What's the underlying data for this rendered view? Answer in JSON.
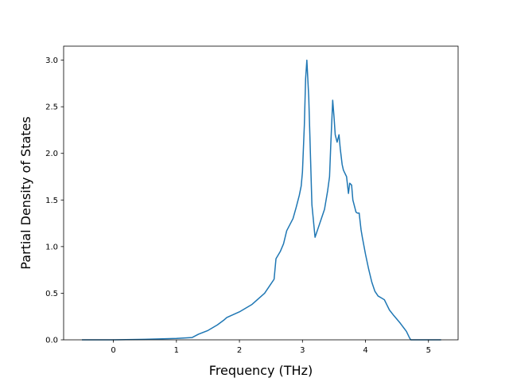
{
  "chart_data": {
    "type": "line",
    "title": "",
    "xlabel": "Frequency (THz)",
    "ylabel": "Partial Density of States",
    "xlim": [
      -0.79,
      5.47
    ],
    "ylim": [
      0.0,
      3.15
    ],
    "xticks": [
      0,
      1,
      2,
      3,
      4,
      5
    ],
    "yticks": [
      0.0,
      0.5,
      1.0,
      1.5,
      2.0,
      2.5,
      3.0
    ],
    "xtick_labels": [
      "0",
      "1",
      "2",
      "3",
      "4",
      "5"
    ],
    "ytick_labels": [
      "0.0",
      "0.5",
      "1.0",
      "1.5",
      "2.0",
      "2.5",
      "3.0"
    ],
    "grid": false,
    "line_color": "#1f77b4",
    "series": [
      {
        "x": [
          -0.5,
          0.0,
          0.5,
          1.0,
          1.25,
          1.35,
          1.5,
          1.65,
          1.75,
          1.8,
          2.0,
          2.2,
          2.4,
          2.5,
          2.55,
          2.58,
          2.65,
          2.7,
          2.75,
          2.85,
          2.9,
          2.95,
          2.98,
          3.0,
          3.03,
          3.05,
          3.07,
          3.1,
          3.15,
          3.2,
          3.25,
          3.3,
          3.35,
          3.4,
          3.43,
          3.45,
          3.48,
          3.5,
          3.52,
          3.55,
          3.58,
          3.6,
          3.63,
          3.65,
          3.7,
          3.73,
          3.75,
          3.78,
          3.8,
          3.85,
          3.87,
          3.9,
          3.93,
          3.95,
          4.0,
          4.05,
          4.1,
          4.15,
          4.2,
          4.25,
          4.3,
          4.38,
          4.45,
          4.55,
          4.65,
          4.7,
          4.72,
          4.75,
          4.8,
          5.2
        ],
        "y": [
          0.0,
          0.0,
          0.005,
          0.015,
          0.025,
          0.06,
          0.1,
          0.16,
          0.21,
          0.24,
          0.3,
          0.38,
          0.5,
          0.6,
          0.65,
          0.87,
          0.95,
          1.03,
          1.17,
          1.3,
          1.42,
          1.55,
          1.65,
          1.8,
          2.3,
          2.8,
          3.0,
          2.6,
          1.45,
          1.1,
          1.2,
          1.3,
          1.4,
          1.6,
          1.75,
          2.1,
          2.57,
          2.4,
          2.2,
          2.12,
          2.2,
          2.05,
          1.88,
          1.82,
          1.75,
          1.57,
          1.68,
          1.66,
          1.5,
          1.37,
          1.36,
          1.36,
          1.18,
          1.1,
          0.92,
          0.76,
          0.62,
          0.52,
          0.47,
          0.45,
          0.43,
          0.32,
          0.26,
          0.18,
          0.09,
          0.02,
          0.0,
          0.0,
          0.0,
          0.0
        ]
      }
    ]
  }
}
